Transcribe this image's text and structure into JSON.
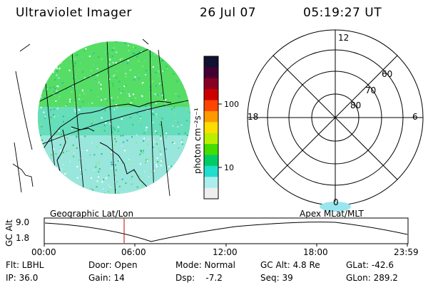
{
  "header": {
    "title": "Ultraviolet Imager",
    "date": "26 Jul 07",
    "time": "05:19:27 UT"
  },
  "colorbar": {
    "unit_label": "photon cm⁻²s⁻¹",
    "ticks": [
      "100",
      "10"
    ],
    "colors": [
      "#111133",
      "#440033",
      "#880022",
      "#cc0000",
      "#ff4400",
      "#ff9900",
      "#ffdd00",
      "#bbee00",
      "#44dd00",
      "#00cc66",
      "#22ddcc",
      "#aaeeee",
      "#eeeeee"
    ]
  },
  "polar": {
    "mlt_labels": [
      "12",
      "18",
      "6",
      "0"
    ],
    "lat_labels": [
      "60",
      "70",
      "80"
    ]
  },
  "plot_labels": {
    "left": "Geographic Lat/Lon",
    "right": "Apex MLat/MLT"
  },
  "orbit_panel": {
    "ylabel": "GC Alt",
    "yticks": [
      "9.0",
      "1.8"
    ],
    "xticks": [
      "00:00",
      "06:00",
      "12:00",
      "18:00",
      "23:59"
    ],
    "marker_time_hours": 5.32
  },
  "footer": {
    "flt": "Flt: LBHL",
    "door": "Door: Open",
    "mode": "Mode: Normal",
    "gcalt": "GC Alt: 4.8 Re",
    "glat": "GLat: -42.6",
    "ip": "IP: 36.0",
    "gain": "Gain: 14",
    "dsp": "Dsp:    -7.2",
    "seq": "Seq: 39",
    "glon": "GLon: 289.2"
  }
}
